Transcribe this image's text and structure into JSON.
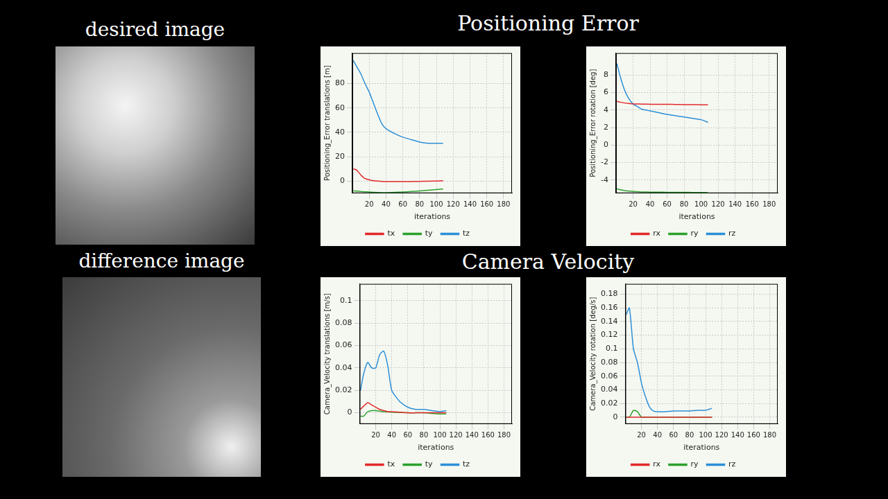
{
  "headings": {
    "image_titles": [
      "desired image",
      "difference image"
    ],
    "chart_groups": [
      "Positioning Error",
      "Camera Velocity"
    ]
  },
  "chart_data": [
    {
      "type": "line",
      "x_label": "iterations",
      "y_label": "Positioning_Error translations [m]",
      "x": [
        1,
        5,
        10,
        15,
        20,
        25,
        30,
        35,
        40,
        50,
        60,
        70,
        80,
        90,
        100,
        108
      ],
      "xlim": [
        0,
        190
      ],
      "xticks": [
        20,
        40,
        60,
        80,
        100,
        120,
        140,
        160,
        180
      ],
      "ylim": [
        -10,
        105
      ],
      "yticks": [
        0,
        20,
        40,
        60,
        80
      ],
      "grid": true,
      "legend": "bottom",
      "series": [
        {
          "name": "tx",
          "color": "#e3292b",
          "values": [
            10,
            9,
            5,
            2,
            1,
            0.3,
            0,
            -0.3,
            -0.5,
            -0.5,
            -0.5,
            -0.4,
            -0.3,
            -0.1,
            0,
            0.2
          ]
        },
        {
          "name": "ty",
          "color": "#2ca02c",
          "values": [
            -8,
            -8.3,
            -8.6,
            -8.8,
            -9,
            -9.2,
            -9.4,
            -9.5,
            -9.5,
            -9.3,
            -9,
            -8.6,
            -8.1,
            -7.6,
            -7,
            -6.5
          ]
        },
        {
          "name": "tz",
          "color": "#2b8fd8",
          "values": [
            99,
            94,
            88,
            80,
            73,
            64,
            55,
            47,
            43,
            39,
            36,
            34,
            32,
            31,
            31,
            31
          ]
        }
      ]
    },
    {
      "type": "line",
      "x_label": "iterations",
      "y_label": "Positioning_Error rotation [deg]",
      "x": [
        1,
        5,
        10,
        15,
        20,
        25,
        30,
        35,
        40,
        50,
        60,
        70,
        80,
        90,
        100,
        108
      ],
      "xlim": [
        0,
        190
      ],
      "xticks": [
        20,
        40,
        60,
        80,
        100,
        120,
        140,
        160,
        180
      ],
      "ylim": [
        -5.5,
        10.5
      ],
      "yticks": [
        -4,
        -2,
        0,
        2,
        4,
        6,
        8
      ],
      "grid": true,
      "legend": "bottom",
      "series": [
        {
          "name": "rx",
          "color": "#e3292b",
          "values": [
            5,
            4.9,
            4.8,
            4.75,
            4.7,
            4.7,
            4.68,
            4.67,
            4.66,
            4.65,
            4.65,
            4.64,
            4.62,
            4.61,
            4.6,
            4.6
          ]
        },
        {
          "name": "ry",
          "color": "#2ca02c",
          "values": [
            -5,
            -5.1,
            -5.2,
            -5.25,
            -5.3,
            -5.32,
            -5.35,
            -5.36,
            -5.37,
            -5.38,
            -5.39,
            -5.4,
            -5.4,
            -5.41,
            -5.42,
            -5.43
          ]
        },
        {
          "name": "rz",
          "color": "#2b8fd8",
          "values": [
            9.3,
            7.8,
            6.3,
            5.3,
            4.7,
            4.4,
            4.1,
            4.0,
            3.9,
            3.7,
            3.5,
            3.35,
            3.2,
            3.05,
            2.9,
            2.6
          ]
        }
      ]
    },
    {
      "type": "line",
      "x_label": "iterations",
      "y_label": "Camera_Velocity translations [m/s]",
      "x": [
        1,
        5,
        10,
        15,
        20,
        25,
        30,
        35,
        40,
        50,
        60,
        70,
        80,
        90,
        100,
        108
      ],
      "xlim": [
        0,
        190
      ],
      "xticks": [
        20,
        40,
        60,
        80,
        100,
        120,
        140,
        160,
        180
      ],
      "ylim": [
        -0.01,
        0.115
      ],
      "yticks": [
        0,
        0.02,
        0.04,
        0.06,
        0.08,
        0.1
      ],
      "grid": true,
      "legend": "bottom",
      "series": [
        {
          "name": "tx",
          "color": "#e3292b",
          "values": [
            0.003,
            0.006,
            0.009,
            0.007,
            0.005,
            0.003,
            0.002,
            0.001,
            0.001,
            0.0005,
            0,
            0,
            0,
            0,
            0,
            0
          ]
        },
        {
          "name": "ty",
          "color": "#2ca02c",
          "values": [
            -0.003,
            -0.003,
            0.001,
            0.002,
            0.002,
            0.0015,
            0.001,
            0.0008,
            0.0005,
            0.0003,
            0,
            0,
            0,
            -0.0005,
            -0.001,
            -0.001
          ]
        },
        {
          "name": "tz",
          "color": "#2b8fd8",
          "values": [
            0.02,
            0.035,
            0.045,
            0.04,
            0.04,
            0.052,
            0.055,
            0.042,
            0.02,
            0.01,
            0.005,
            0.003,
            0.003,
            0.002,
            0.001,
            0.002
          ]
        }
      ]
    },
    {
      "type": "line",
      "x_label": "iterations",
      "y_label": "Camera_Velocity rotation [deg/s]",
      "x": [
        1,
        5,
        10,
        15,
        20,
        25,
        30,
        35,
        40,
        50,
        60,
        70,
        80,
        90,
        100,
        108
      ],
      "xlim": [
        0,
        190
      ],
      "xticks": [
        20,
        40,
        60,
        80,
        100,
        120,
        140,
        160,
        180
      ],
      "ylim": [
        -0.01,
        0.195
      ],
      "yticks": [
        0,
        0.02,
        0.04,
        0.06,
        0.08,
        0.1,
        0.12,
        0.14,
        0.16,
        0.18
      ],
      "grid": true,
      "legend": "bottom",
      "series": [
        {
          "name": "rx",
          "color": "#e3292b",
          "values": [
            0,
            0,
            0,
            0,
            0,
            0,
            0,
            0,
            0,
            0,
            0,
            0,
            0,
            0,
            0,
            0
          ]
        },
        {
          "name": "ry",
          "color": "#2ca02c",
          "values": [
            0,
            0,
            0.01,
            0.008,
            0,
            0,
            0,
            0,
            0,
            0,
            0,
            0,
            0,
            0,
            0,
            0
          ]
        },
        {
          "name": "rz",
          "color": "#2b8fd8",
          "values": [
            0.15,
            0.16,
            0.1,
            0.08,
            0.05,
            0.03,
            0.015,
            0.009,
            0.008,
            0.008,
            0.009,
            0.009,
            0.009,
            0.01,
            0.01,
            0.013
          ]
        }
      ]
    }
  ]
}
